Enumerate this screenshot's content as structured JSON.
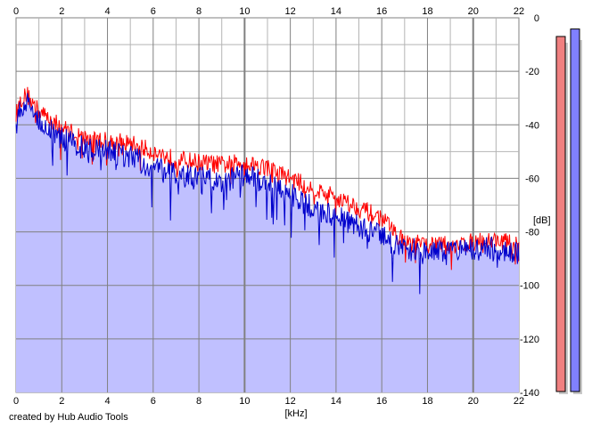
{
  "footer": {
    "credit": "created by Hub Audio Tools"
  },
  "colors": {
    "fill": "#c0c0ff",
    "red_series": "#ff0000",
    "blue_series": "#0000cc",
    "grid_major": "#808080",
    "grid_minor": "#b4b4b4",
    "meter_left": "#f08080",
    "meter_right": "#8080ff"
  },
  "chart_data": {
    "type": "line",
    "title": "",
    "xlabel": "[kHz]",
    "ylabel": "[dB]",
    "xlim": [
      0,
      22
    ],
    "ylim": [
      -140,
      0
    ],
    "x_ticks": [
      "0",
      "2",
      "4",
      "6",
      "8",
      "10",
      "12",
      "14",
      "16",
      "18",
      "20",
      "22"
    ],
    "y_ticks": [
      "0",
      "-20",
      "-40",
      "-60",
      "-80",
      "-100",
      "-120",
      "-140"
    ],
    "grid": true,
    "filled_under_blue": true,
    "series": [
      {
        "color": "red",
        "x": [
          0,
          0.25,
          0.5,
          1,
          2,
          3,
          4,
          5,
          6,
          7,
          8,
          9,
          10,
          11,
          12,
          13,
          14,
          15,
          16,
          17,
          18,
          19,
          20,
          21,
          22
        ],
        "y": [
          -36,
          -30,
          -29,
          -35,
          -41,
          -45,
          -46,
          -47,
          -50,
          -53,
          -54,
          -55,
          -54,
          -56,
          -60,
          -64,
          -67,
          -71,
          -75,
          -84,
          -85,
          -85,
          -84,
          -83,
          -85
        ]
      },
      {
        "color": "blue",
        "x": [
          0,
          0.25,
          0.5,
          1,
          2,
          3,
          4,
          5,
          6,
          7,
          8,
          9,
          10,
          11,
          12,
          13,
          14,
          15,
          16,
          17,
          18,
          19,
          20,
          21,
          22
        ],
        "y": [
          -40,
          -33,
          -32,
          -38,
          -45,
          -49,
          -50,
          -52,
          -56,
          -59,
          -60,
          -61,
          -59,
          -62,
          -66,
          -71,
          -74,
          -78,
          -82,
          -86,
          -88,
          -88,
          -87,
          -86,
          -88
        ]
      }
    ],
    "level_meters": [
      {
        "channel": "left",
        "level": 0.95
      },
      {
        "channel": "right",
        "level": 0.97
      }
    ]
  }
}
